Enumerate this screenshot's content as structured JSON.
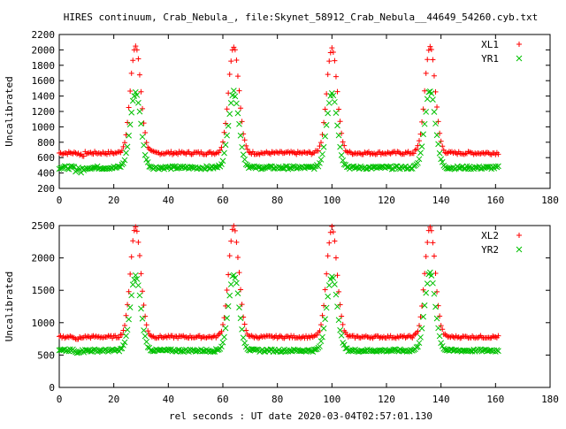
{
  "title": "HIRES continuum, Crab_Nebula_, file:Skynet_58912_Crab_Nebula__44649_54260.cyb.txt",
  "xlabel": "rel seconds : UT date 2020-03-04T02:57:01.130",
  "colors": {
    "red": "#ff0000",
    "green": "#00c000",
    "axes": "#000000"
  },
  "chart_data": [
    {
      "type": "scatter",
      "panel": "top",
      "ylabel": "Uncalibrated",
      "xlim": [
        0,
        180
      ],
      "ylim": [
        200,
        2200
      ],
      "xticks": [
        0,
        20,
        40,
        60,
        80,
        100,
        120,
        140,
        160,
        180
      ],
      "yticks": [
        200,
        400,
        600,
        800,
        1000,
        1200,
        1400,
        1600,
        1800,
        2000,
        2200
      ],
      "legend": "top-right",
      "grid": false,
      "peaks": [
        {
          "x": 28,
          "xl_peak": 2050,
          "yr_peak": 1450
        },
        {
          "x": 64,
          "xl_peak": 2050,
          "yr_peak": 1450
        },
        {
          "x": 100,
          "xl_peak": 2030,
          "yr_peak": 1450
        },
        {
          "x": 136,
          "xl_peak": 2050,
          "yr_peak": 1480
        }
      ],
      "series": [
        {
          "name": "XL1",
          "marker": "+",
          "color": "#ff0000",
          "baseline": 660
        },
        {
          "name": "YR1",
          "marker": "x",
          "color": "#00c000",
          "baseline": 470
        }
      ]
    },
    {
      "type": "scatter",
      "panel": "bottom",
      "ylabel": "Uncalibrated",
      "xlim": [
        0,
        180
      ],
      "ylim": [
        0,
        2500
      ],
      "xticks": [
        0,
        20,
        40,
        60,
        80,
        100,
        120,
        140,
        160,
        180
      ],
      "yticks": [
        0,
        500,
        1000,
        1500,
        2000,
        2500
      ],
      "legend": "top-right",
      "grid": false,
      "peaks": [
        {
          "x": 28,
          "xl_peak": 2480,
          "yr_peak": 1720
        },
        {
          "x": 64,
          "xl_peak": 2480,
          "yr_peak": 1750
        },
        {
          "x": 100,
          "xl_peak": 2470,
          "yr_peak": 1730
        },
        {
          "x": 136,
          "xl_peak": 2470,
          "yr_peak": 1770
        }
      ],
      "series": [
        {
          "name": "XL2",
          "marker": "+",
          "color": "#ff0000",
          "baseline": 780
        },
        {
          "name": "YR2",
          "marker": "x",
          "color": "#00c000",
          "baseline": 570
        }
      ]
    }
  ]
}
